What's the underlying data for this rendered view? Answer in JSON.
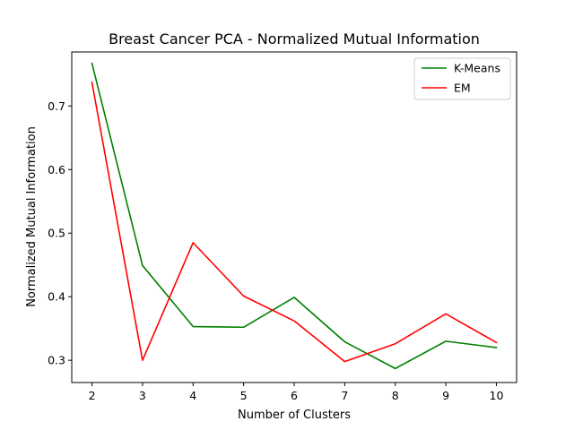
{
  "chart_data": {
    "type": "line",
    "title": "Breast Cancer PCA - Normalized Mutual Information",
    "xlabel": "Number of Clusters",
    "ylabel": "Normalized Mutual Information",
    "x": [
      2,
      3,
      4,
      5,
      6,
      7,
      8,
      9,
      10
    ],
    "xticks": [
      "2",
      "3",
      "4",
      "5",
      "6",
      "7",
      "8",
      "9",
      "10"
    ],
    "yticks": [
      0.3,
      0.4,
      0.5,
      0.6,
      0.7
    ],
    "ytick_labels": [
      "0.3",
      "0.4",
      "0.5",
      "0.6",
      "0.7"
    ],
    "xlim": [
      1.6,
      10.4
    ],
    "ylim": [
      0.265,
      0.785
    ],
    "grid": false,
    "legend_position": "top-right",
    "series": [
      {
        "name": "K-Means",
        "color": "#008000",
        "values": [
          0.767,
          0.449,
          0.353,
          0.352,
          0.399,
          0.329,
          0.287,
          0.33,
          0.32
        ]
      },
      {
        "name": "EM",
        "color": "#ff0000",
        "values": [
          0.737,
          0.3,
          0.485,
          0.401,
          0.362,
          0.298,
          0.326,
          0.373,
          0.328
        ]
      }
    ]
  }
}
